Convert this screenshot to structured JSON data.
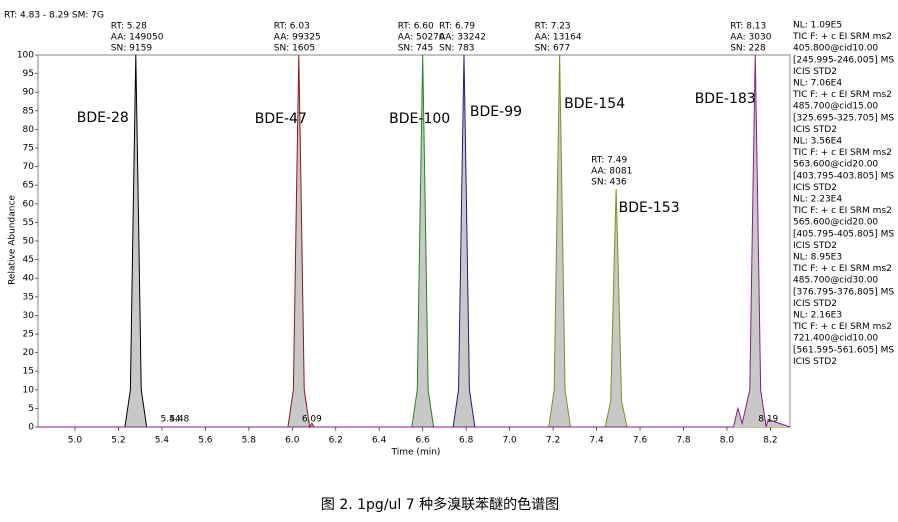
{
  "chart_data": {
    "type": "line",
    "header": "RT: 4.83 - 8.29   SM: 7G",
    "xlabel": "Time (min)",
    "ylabel": "Relative Abundance",
    "caption": "图 2. 1pg/ul 7 种多溴联苯醚的色谱图",
    "xlim": [
      4.83,
      8.29
    ],
    "ylim": [
      0,
      100
    ],
    "xticks": [
      {
        "value": 5.0,
        "label": "5.0"
      },
      5.2,
      5.4,
      5.6,
      5.8,
      {
        "value": 6.0,
        "label": "6.0"
      },
      6.2,
      6.4,
      6.6,
      6.8,
      {
        "value": 7.0,
        "label": "7.0"
      },
      7.2,
      7.4,
      7.6,
      7.8,
      {
        "value": 8.0,
        "label": "8.0"
      },
      8.2
    ],
    "yticks": [
      0,
      5,
      10,
      15,
      20,
      25,
      30,
      35,
      40,
      45,
      50,
      55,
      60,
      65,
      70,
      75,
      80,
      85,
      90,
      95,
      100
    ],
    "series": [
      {
        "color": "#000000",
        "x": [
          4.83,
          5.23,
          5.255,
          5.27,
          5.28,
          5.29,
          5.305,
          5.33,
          8.29
        ],
        "values": [
          0,
          0,
          10,
          65,
          100,
          65,
          10,
          0,
          0
        ],
        "legend": [
          "NL: 1.09E5",
          "TIC F: + c EI SRM ms2",
          "405.800@cid10.00",
          "[245.995-246.005]  MS",
          "ICIS STD2"
        ]
      },
      {
        "color": "#8b1a1a",
        "x": [
          4.83,
          5.98,
          6.005,
          6.02,
          6.03,
          6.04,
          6.055,
          6.08,
          6.09,
          6.1,
          8.29
        ],
        "values": [
          0,
          0,
          10,
          65,
          100,
          65,
          10,
          0,
          1,
          0,
          0
        ],
        "legend": [
          "NL: 7.06E4",
          "TIC F: + c EI SRM ms2",
          "485.700@cid15.00",
          "[325.695-325.705]  MS",
          "ICIS STD2"
        ]
      },
      {
        "color": "#1a8a1a",
        "x": [
          4.83,
          6.55,
          6.575,
          6.59,
          6.6,
          6.61,
          6.625,
          6.65,
          8.29
        ],
        "values": [
          0,
          0,
          10,
          65,
          100,
          65,
          10,
          0,
          0
        ],
        "legend": [
          "NL: 3.56E4",
          "TIC F: + c EI SRM ms2",
          "563.600@cid20.00",
          "[403.795-403.805]  MS",
          "ICIS STD2"
        ]
      },
      {
        "color": "#1a1a8a",
        "x": [
          4.83,
          6.74,
          6.765,
          6.78,
          6.79,
          6.8,
          6.815,
          6.84,
          8.29
        ],
        "values": [
          0,
          0,
          10,
          65,
          100,
          65,
          10,
          0,
          0
        ],
        "legend": [
          "NL: 2.23E4",
          "TIC F: + c EI SRM ms2",
          "565.600@cid20.00",
          "[405.795-405.805]  MS",
          "ICIS STD2"
        ]
      },
      {
        "color": "#8a8a1a",
        "x": [
          4.83,
          7.18,
          7.205,
          7.22,
          7.23,
          7.24,
          7.255,
          7.28,
          7.44,
          7.465,
          7.48,
          7.49,
          7.5,
          7.515,
          7.54,
          8.29
        ],
        "values": [
          0,
          0,
          10,
          65,
          100,
          65,
          10,
          0,
          0,
          7,
          42,
          64,
          42,
          7,
          0,
          0
        ],
        "legend": [
          "NL: 8.95E3",
          "TIC F: + c EI SRM ms2",
          "485.700@cid30.00",
          "[376.795-376.805]  MS",
          "ICIS STD2"
        ]
      },
      {
        "color": "#8a1a8a",
        "x": [
          4.83,
          8.03,
          8.05,
          8.07,
          8.105,
          8.12,
          8.13,
          8.14,
          8.155,
          8.18,
          8.19,
          8.29
        ],
        "values": [
          0,
          0,
          5,
          1,
          10,
          65,
          100,
          65,
          10,
          0,
          2,
          0
        ],
        "legend": [
          "NL: 2.16E3",
          "TIC F: + c EI SRM ms2",
          "721.400@cid10.00",
          "[561.595-561.605]  MS",
          "ICIS STD2"
        ]
      }
    ],
    "peaks": [
      {
        "name": "BDE-28",
        "rt": 5.28,
        "rt_label": "RT: 5.28",
        "aa_label": "AA: 149050",
        "sn_label": "SN: 9159"
      },
      {
        "name": "BDE-47",
        "rt": 6.03,
        "rt_label": "RT: 6.03",
        "aa_label": "AA: 99325",
        "sn_label": "SN: 1605"
      },
      {
        "name": "BDE-100",
        "rt": 6.6,
        "rt_label": "RT: 6.60",
        "aa_label": "AA: 50270",
        "sn_label": "SN: 745"
      },
      {
        "name": "BDE-99",
        "rt": 6.79,
        "rt_label": "RT: 6.79",
        "aa_label": "AA: 33242",
        "sn_label": "SN: 783"
      },
      {
        "name": "BDE-154",
        "rt": 7.23,
        "rt_label": "RT: 7.23",
        "aa_label": "AA: 13164",
        "sn_label": "SN: 677"
      },
      {
        "name": "BDE-153",
        "rt": 7.49,
        "rt_label": "RT: 7.49",
        "aa_label": "AA: 8081",
        "sn_label": "SN: 436"
      },
      {
        "name": "BDE-183",
        "rt": 8.13,
        "rt_label": "RT: 8.13",
        "aa_label": "AA: 3030",
        "sn_label": "SN: 228"
      }
    ],
    "minor_peaks": [
      5.44,
      5.48,
      6.09,
      8.19
    ]
  }
}
